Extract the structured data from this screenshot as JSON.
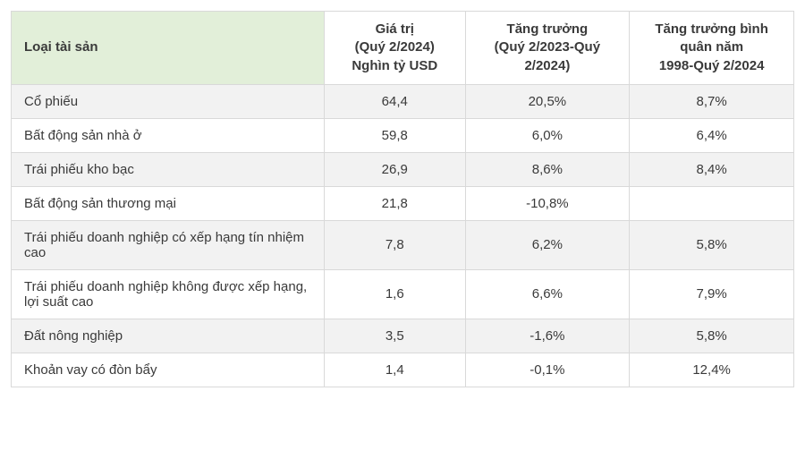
{
  "table": {
    "type": "table",
    "background_color": "#ffffff",
    "header_bg_asset": "#e2efd9",
    "row_alt_bg": "#f2f2f2",
    "border_color": "#d9d9d9",
    "columns": [
      {
        "key": "asset_type",
        "label": "Loại tài sản",
        "align": "left",
        "width_pct": 40
      },
      {
        "key": "value",
        "label": "Giá trị\n(Quý 2/2024)\nNghìn tỷ USD",
        "align": "center",
        "width_pct": 18
      },
      {
        "key": "growth",
        "label": "Tăng trưởng\n(Quý 2/2023-Quý 2/2024)",
        "align": "center",
        "width_pct": 21
      },
      {
        "key": "avg_growth",
        "label": "Tăng trưởng bình quân năm\n1998-Quý 2/2024",
        "align": "center",
        "width_pct": 21
      }
    ],
    "rows": [
      {
        "asset_type": "Cổ phiếu",
        "value": "64,4",
        "growth": "20,5%",
        "avg_growth": "8,7%"
      },
      {
        "asset_type": "Bất động sản nhà ở",
        "value": "59,8",
        "growth": "6,0%",
        "avg_growth": "6,4%"
      },
      {
        "asset_type": "Trái phiếu kho bạc",
        "value": "26,9",
        "growth": "8,6%",
        "avg_growth": "8,4%"
      },
      {
        "asset_type": "Bất động sản thương mại",
        "value": "21,8",
        "growth": "-10,8%",
        "avg_growth": ""
      },
      {
        "asset_type": "Trái phiếu doanh nghiệp có xếp hạng tín nhiệm cao",
        "value": "7,8",
        "growth": "6,2%",
        "avg_growth": "5,8%"
      },
      {
        "asset_type": "Trái phiếu doanh nghiệp không được xếp hạng, lợi suất cao",
        "value": "1,6",
        "growth": "6,6%",
        "avg_growth": "7,9%"
      },
      {
        "asset_type": "Đất nông nghiệp",
        "value": "3,5",
        "growth": "-1,6%",
        "avg_growth": "5,8%"
      },
      {
        "asset_type": "Khoản vay có đòn bẩy",
        "value": "1,4",
        "growth": "-0,1%",
        "avg_growth": "12,4%"
      }
    ]
  }
}
